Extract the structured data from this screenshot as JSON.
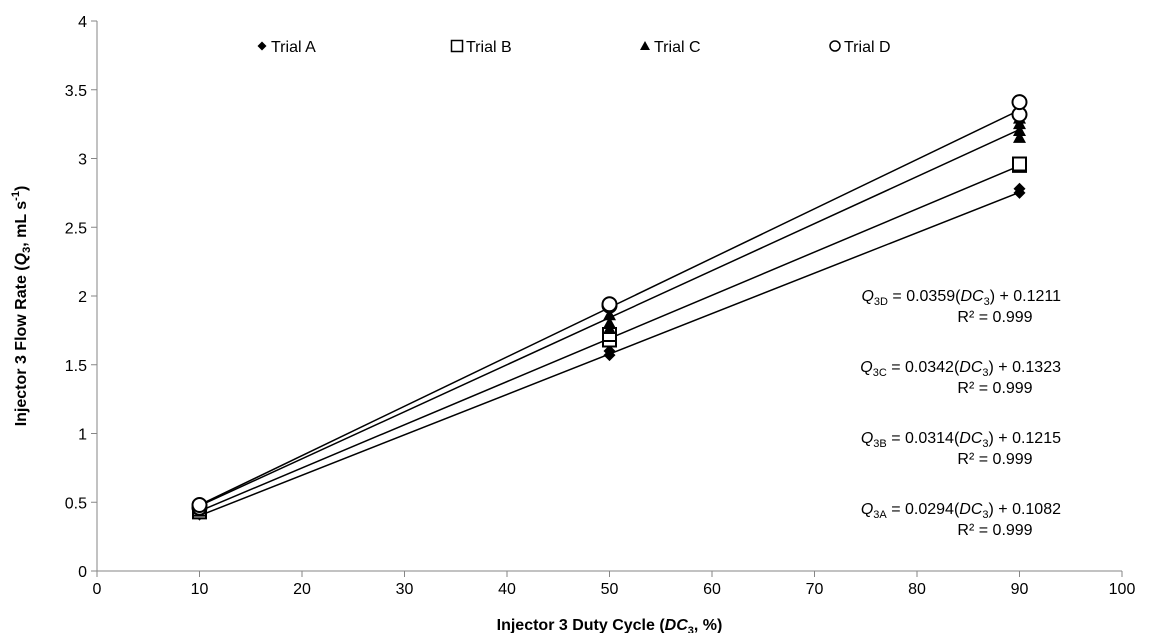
{
  "chart_data": {
    "type": "scatter",
    "xlabel": {
      "main": "Injector 3 Duty Cycle (",
      "italic": "DC",
      "sub": "3",
      "tail": ", %)"
    },
    "ylabel": {
      "main": "Injector 3 Flow Rate (",
      "italic": "Q",
      "sub": "3",
      "tail": ", mL s",
      "sup": "-1",
      "close": ")"
    },
    "xlim": [
      0,
      100
    ],
    "ylim": [
      0,
      4
    ],
    "xticks": [
      "0",
      "10",
      "20",
      "30",
      "40",
      "50",
      "60",
      "70",
      "80",
      "90",
      "100"
    ],
    "yticks": [
      "0",
      "0.5",
      "1",
      "1.5",
      "2",
      "2.5",
      "3",
      "3.5",
      "4"
    ],
    "grid": false,
    "legend_position": "top",
    "series": [
      {
        "name": "Trial A",
        "marker": "diamond",
        "points": [
          [
            10,
            0.41
          ],
          [
            10,
            0.43
          ],
          [
            50,
            1.57
          ],
          [
            50,
            1.6
          ],
          [
            90,
            2.75
          ],
          [
            90,
            2.78
          ]
        ],
        "fit": {
          "slope": 0.0294,
          "intercept": 0.1082
        },
        "equation": {
          "q": "Q",
          "sub": "3A",
          "rest": " = 0.0294(",
          "dc": "DC",
          "dcsub": "3",
          "tail": ") + 0.1082",
          "r2": "R² = 0.999"
        }
      },
      {
        "name": "Trial B",
        "marker": "square",
        "points": [
          [
            10,
            0.43
          ],
          [
            10,
            0.45
          ],
          [
            50,
            1.68
          ],
          [
            50,
            1.72
          ],
          [
            90,
            2.95
          ],
          [
            90,
            2.96
          ]
        ],
        "fit": {
          "slope": 0.0314,
          "intercept": 0.1215
        },
        "equation": {
          "q": "Q",
          "sub": "3B",
          "rest": " = 0.0314(",
          "dc": "DC",
          "dcsub": "3",
          "tail": ") + 0.1215",
          "r2": "R² = 0.999"
        }
      },
      {
        "name": "Trial C",
        "marker": "triangle",
        "points": [
          [
            10,
            0.45
          ],
          [
            10,
            0.47
          ],
          [
            50,
            1.76
          ],
          [
            50,
            1.8
          ],
          [
            50,
            1.86
          ],
          [
            90,
            3.15
          ],
          [
            90,
            3.2
          ],
          [
            90,
            3.25
          ],
          [
            90,
            3.29
          ]
        ],
        "fit": {
          "slope": 0.0342,
          "intercept": 0.1323
        },
        "equation": {
          "q": "Q",
          "sub": "3C",
          "rest": " = 0.0342(",
          "dc": "DC",
          "dcsub": "3",
          "tail": ") + 0.1323",
          "r2": "R² = 0.999"
        }
      },
      {
        "name": "Trial D",
        "marker": "circle",
        "points": [
          [
            10,
            0.46
          ],
          [
            10,
            0.48
          ],
          [
            50,
            1.93
          ],
          [
            50,
            1.94
          ],
          [
            90,
            3.32
          ],
          [
            90,
            3.41
          ]
        ],
        "fit": {
          "slope": 0.0359,
          "intercept": 0.1211
        },
        "equation": {
          "q": "Q",
          "sub": "3D",
          "rest": " = 0.0359(",
          "dc": "DC",
          "dcsub": "3",
          "tail": ") + 0.1211",
          "r2": "R² = 0.999"
        }
      }
    ]
  }
}
